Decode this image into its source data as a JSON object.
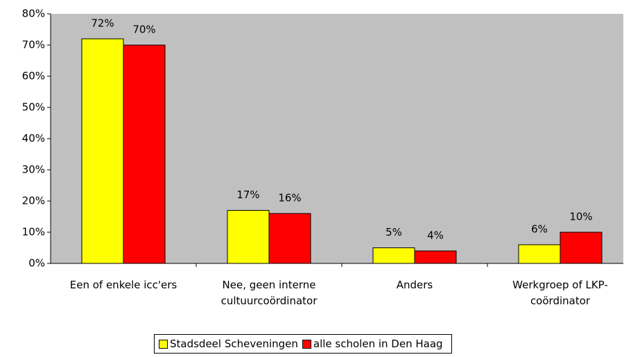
{
  "chart_data": {
    "type": "bar",
    "categories": [
      "Een of enkele  icc'ers",
      "Nee, geen interne cultuurcoördinator",
      "Anders",
      "Werkgroep of LKP-coördinator"
    ],
    "series": [
      {
        "name": "Stadsdeel Scheveningen",
        "color": "#ffff00",
        "values": [
          72,
          17,
          5,
          6
        ],
        "value_labels": [
          "72%",
          "17%",
          "5%",
          "6%"
        ]
      },
      {
        "name": "alle scholen in Den Haag",
        "color": "#ff0000",
        "values": [
          70,
          16,
          4,
          10
        ],
        "value_labels": [
          "70%",
          "16%",
          "4%",
          "10%"
        ]
      }
    ],
    "ylim": [
      0,
      80
    ],
    "yticks": [
      {
        "value": 0,
        "label": "0%"
      },
      {
        "value": 10,
        "label": "10%"
      },
      {
        "value": 20,
        "label": "20%"
      },
      {
        "value": 30,
        "label": "30%"
      },
      {
        "value": 40,
        "label": "40%"
      },
      {
        "value": 50,
        "label": "50%"
      },
      {
        "value": 60,
        "label": "60%"
      },
      {
        "value": 70,
        "label": "70%"
      },
      {
        "value": 80,
        "label": "80%"
      }
    ],
    "plot_background": "#c0c0c0",
    "legend": "bottom"
  }
}
